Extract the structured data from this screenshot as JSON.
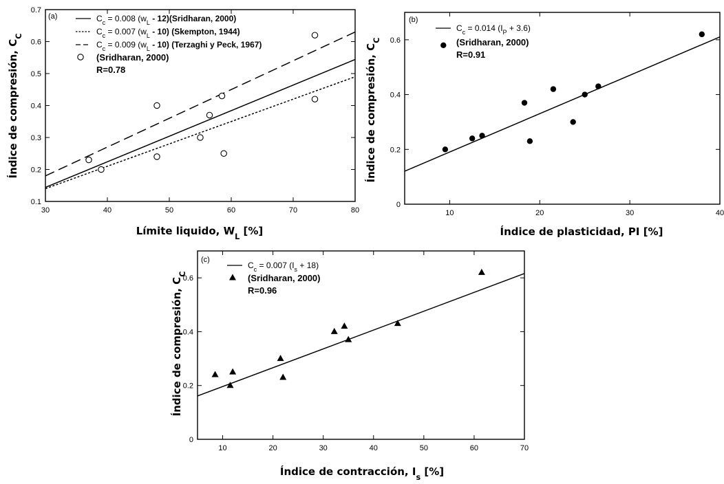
{
  "chart_data": [
    {
      "type": "scatter",
      "panel": "(a)",
      "xlabel": "Límite liquido, W",
      "xlabel_sub": "L",
      "xlabel_tail": " [%]",
      "ylabel": "Índice de compresión, C",
      "ylabel_sub": "C",
      "xlim": [
        30,
        80
      ],
      "ylim": [
        0.1,
        0.7
      ],
      "xticks": [
        "30",
        "40",
        "50",
        "60",
        "70",
        "80"
      ],
      "yticks": [
        "0.1",
        "0.2",
        "0.3",
        "0.4",
        "0.5",
        "0.6",
        "0.7"
      ],
      "lines": [
        {
          "legend": "C",
          "legend_sub": "c",
          "legend_rest": " =  0.008 (w",
          "legend_sub2": "L",
          "legend_tail": " - 12)(Sridharan, 2000)",
          "slope": 0.008,
          "offset": -12,
          "style": "solid"
        },
        {
          "legend": "C",
          "legend_sub": "c",
          "legend_rest": " = 0.007 (w",
          "legend_sub2": "L",
          "legend_tail": " - 10) (Skempton, 1944)",
          "slope": 0.007,
          "offset": -10,
          "style": "dotted"
        },
        {
          "legend": "C",
          "legend_sub": "c",
          "legend_rest": " = 0.009 (w",
          "legend_sub2": "L",
          "legend_tail": " - 10) (Terzaghi y Peck, 1967)",
          "slope": 0.009,
          "offset": -10,
          "style": "dashed"
        }
      ],
      "points_legend": "(Sridharan, 2000)",
      "r_text": "R=0.78",
      "marker": "open-circle",
      "points": [
        [
          37,
          0.23
        ],
        [
          39,
          0.2
        ],
        [
          48,
          0.4
        ],
        [
          48,
          0.24
        ],
        [
          55,
          0.3
        ],
        [
          56.5,
          0.37
        ],
        [
          58.5,
          0.43
        ],
        [
          58.8,
          0.25
        ],
        [
          73.5,
          0.42
        ],
        [
          73.5,
          0.62
        ]
      ]
    },
    {
      "type": "scatter",
      "panel": "(b)",
      "xlabel": "Índice de plasticidad, PI  [%]",
      "ylabel": "Índice de compresión, C",
      "ylabel_sub": "C",
      "xlim": [
        5,
        40
      ],
      "ylim": [
        0,
        0.7
      ],
      "xticks": [
        "10",
        "20",
        "30",
        "40"
      ],
      "yticks": [
        "0",
        "0.2",
        "0.4",
        "0.6"
      ],
      "lines": [
        {
          "legend": "C",
          "legend_sub": "c",
          "legend_rest": " = 0.014 (I",
          "legend_sub2": "P",
          "legend_tail": " + 3.6)",
          "slope": 0.014,
          "offset": 3.6,
          "style": "solid"
        }
      ],
      "points_legend": "(Sridharan, 2000)",
      "r_text": "R=0.91",
      "marker": "filled-circle",
      "points": [
        [
          9.5,
          0.2
        ],
        [
          9.3,
          0.58
        ],
        [
          12.5,
          0.24
        ],
        [
          13.6,
          0.25
        ],
        [
          18.3,
          0.37
        ],
        [
          18.9,
          0.23
        ],
        [
          21.5,
          0.42
        ],
        [
          23.7,
          0.3
        ],
        [
          25,
          0.4
        ],
        [
          26.5,
          0.43
        ],
        [
          38,
          0.62
        ]
      ]
    },
    {
      "type": "scatter",
      "panel": "(c)",
      "xlabel": "Índice de contracción, I",
      "xlabel_sub": "s",
      "xlabel_tail": " [%]",
      "ylabel": "Índice de compresión, C",
      "ylabel_sub": "C",
      "xlim": [
        5,
        70
      ],
      "ylim": [
        0,
        0.7
      ],
      "xticks": [
        "10",
        "20",
        "30",
        "40",
        "50",
        "60",
        "70"
      ],
      "yticks": [
        "0",
        "0.2",
        "0.4",
        "0.6"
      ],
      "lines": [
        {
          "legend": "C",
          "legend_sub": "c",
          "legend_rest": " = 0.007 (I",
          "legend_sub2": "s",
          "legend_tail": " + 18)",
          "slope": 0.007,
          "offset": 18,
          "style": "solid"
        }
      ],
      "points_legend": "(Sridharan, 2000)",
      "r_text": "R=0.96",
      "marker": "filled-triangle",
      "points": [
        [
          8.5,
          0.24
        ],
        [
          11.5,
          0.2
        ],
        [
          12,
          0.25
        ],
        [
          21.5,
          0.3
        ],
        [
          22,
          0.23
        ],
        [
          32.2,
          0.4
        ],
        [
          34.2,
          0.42
        ],
        [
          35,
          0.37
        ],
        [
          44.8,
          0.43
        ],
        [
          61.5,
          0.62
        ]
      ]
    }
  ]
}
